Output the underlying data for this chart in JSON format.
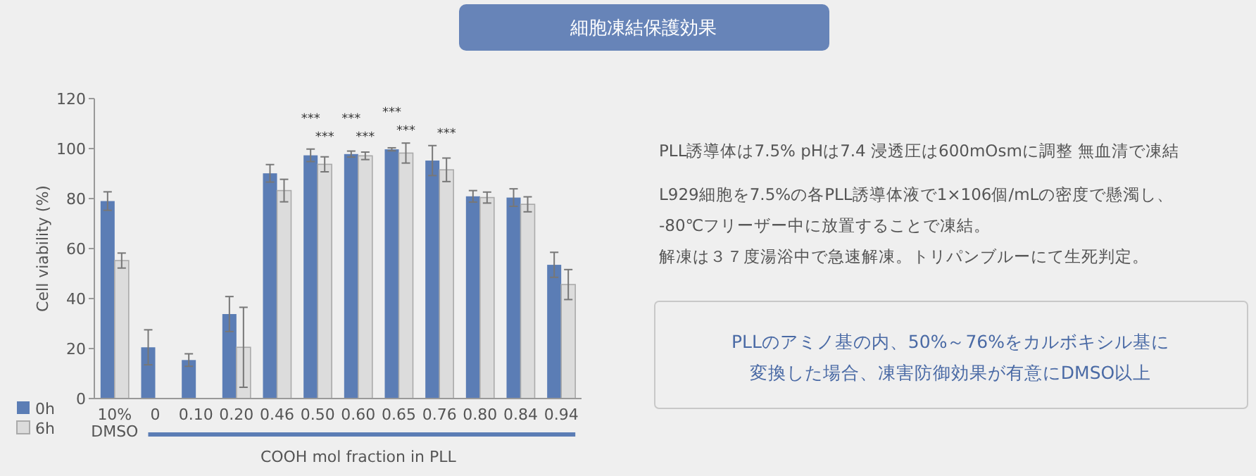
{
  "chart_data": {
    "type": "bar",
    "title": "細胞凍結保護効果",
    "ylabel": "Cell viability (%)",
    "xlabel": "COOH mol fraction in PLL",
    "categories": [
      "10%\nDMSO",
      "0",
      "0.10",
      "0.20",
      "0.46",
      "0.50",
      "0.60",
      "0.65",
      "0.76",
      "0.80",
      "0.84",
      "0.94"
    ],
    "series": [
      {
        "name": "0h",
        "color": "#5b7db5",
        "values": [
          79,
          20.5,
          15.4,
          33.8,
          90.1,
          97.3,
          97.8,
          99.7,
          95.2,
          80.9,
          80.4,
          53.5
        ],
        "errors": [
          3.7,
          7,
          2.5,
          7,
          3.5,
          2.5,
          1.2,
          0.6,
          6,
          2.3,
          3.5,
          5
        ]
      },
      {
        "name": "6h",
        "color": "#dcdcdc",
        "values": [
          55.2,
          null,
          null,
          20.5,
          83.2,
          93.7,
          97.1,
          98.2,
          91.5,
          80.4,
          77.7,
          45.6
        ],
        "errors": [
          3,
          null,
          null,
          16,
          4.5,
          3,
          1.5,
          4,
          4.7,
          2.2,
          3,
          6
        ]
      }
    ],
    "ylim": [
      0,
      120
    ],
    "yticks": [
      0,
      20,
      40,
      60,
      80,
      100,
      120
    ],
    "legend": "bottom left",
    "annotations": [
      {
        "text": "***",
        "x": "0.50",
        "y": 97.3
      },
      {
        "text": "***",
        "x": "0.60",
        "y": 97.8
      },
      {
        "text": "***",
        "x": "0.65",
        "y": 99.7
      },
      {
        "text": "***",
        "x": "0.50",
        "y": 93.7
      },
      {
        "text": "***",
        "x": "0.60",
        "y": 97.1
      },
      {
        "text": "***",
        "x": "0.65",
        "y": 98.2
      },
      {
        "text": "***",
        "x": "0.76",
        "y": 91.5
      },
      "PLL誘導体は7.5% pHは7.4 浸透圧は600mOsmに調整 無血清で凍結",
      "L929細胞を7.5%の各PLL誘導体液で1×106個/mLの密度で懸濁し、",
      "-80℃フリーザー中に放置することで凍結。",
      "解凍は３７度湯浴中で急速解凍。トリパンブルーにて生死判定。",
      "PLLのアミノ基の内、50%～76%をカルボキシル基に",
      "変換した場合、凍害防御効果が有意にDMSO以上"
    ]
  }
}
